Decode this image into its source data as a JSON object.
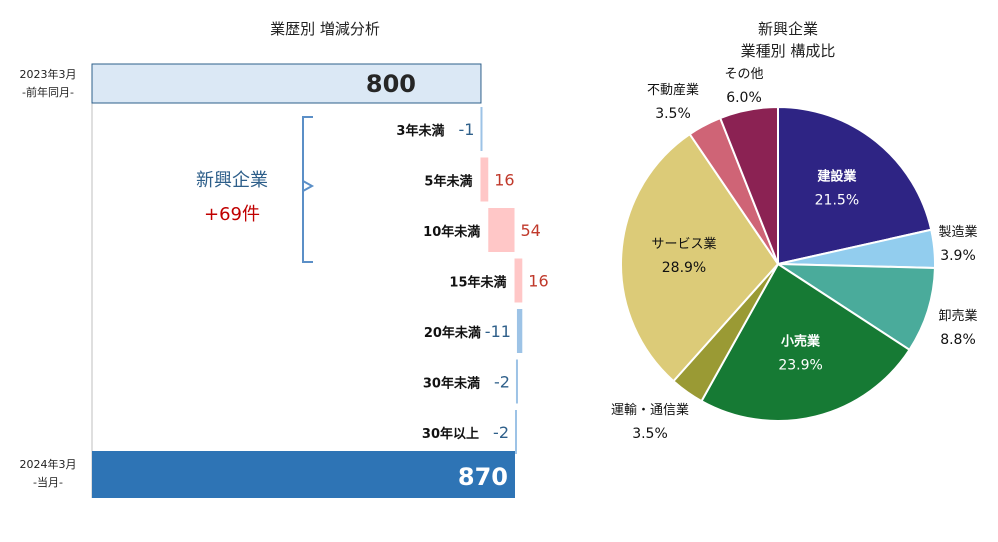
{
  "chart_data": [
    {
      "type": "bar",
      "title": "業歴別  増減分析",
      "start": {
        "period": "2023年3月",
        "sub": "-前年同月-",
        "value": 800
      },
      "end": {
        "period": "2024年3月",
        "sub": "-当月-",
        "value": 870
      },
      "bracket": {
        "label": "新興企業",
        "change": "+69件"
      },
      "categories": [
        "3年未満",
        "5年未満",
        "10年未満",
        "15年未満",
        "20年未満",
        "30年未満",
        "30年以上"
      ],
      "changes": [
        -1,
        16,
        54,
        16,
        -11,
        -2,
        -2
      ],
      "change_labels": [
        "-1",
        "16",
        "54",
        "16",
        "-11",
        "-2",
        "-2"
      ],
      "colors": {
        "start": "#dbe8f5",
        "end": "#2e74b5",
        "increase": "#ffc7c7",
        "decrease": "#9dc3e6",
        "pos_text": "#c0392b",
        "neg_text": "#2e5f8a"
      }
    },
    {
      "type": "pie",
      "title": "新興企業",
      "subtitle": "業種別  構成比",
      "slices": [
        {
          "label": "建設業",
          "value": 21.5,
          "pct": "21.5%",
          "color": "#2e2484"
        },
        {
          "label": "製造業",
          "value": 3.9,
          "pct": "3.9%",
          "color": "#92cdee"
        },
        {
          "label": "卸売業",
          "value": 8.8,
          "pct": "8.8%",
          "color": "#4aab9b"
        },
        {
          "label": "小売業",
          "value": 23.9,
          "pct": "23.9%",
          "color": "#167a34"
        },
        {
          "label": "運輸・通信業",
          "value": 3.5,
          "pct": "3.5%",
          "color": "#9a9a34"
        },
        {
          "label": "サービス業",
          "value": 28.9,
          "pct": "28.9%",
          "color": "#dccb78"
        },
        {
          "label": "不動産業",
          "value": 3.5,
          "pct": "3.5%",
          "color": "#cf6476"
        },
        {
          "label": "その他",
          "value": 6.0,
          "pct": "6.0%",
          "color": "#8b2253"
        }
      ]
    }
  ]
}
